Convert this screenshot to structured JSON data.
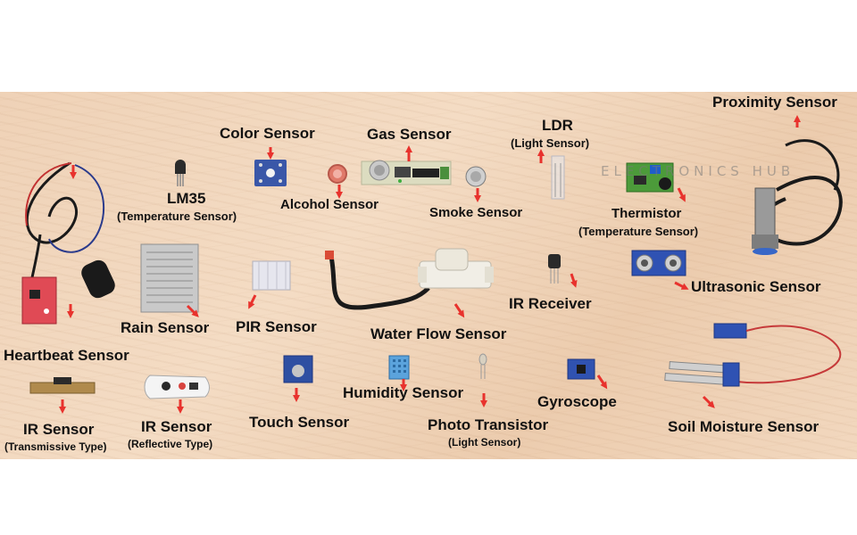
{
  "labels": {
    "proximity": "Proximity Sensor",
    "color": "Color Sensor",
    "gas": "Gas Sensor",
    "ldr": "LDR",
    "ldr_sub": "(Light Sensor)",
    "lm35": "LM35",
    "lm35_sub": "(Temperature Sensor)",
    "alcohol": "Alcohol Sensor",
    "smoke": "Smoke Sensor",
    "thermistor": "Thermistor",
    "thermistor_sub": "(Temperature Sensor)",
    "rain": "Rain Sensor",
    "pir": "PIR Sensor",
    "water_flow": "Water Flow Sensor",
    "ir_receiver": "IR Receiver",
    "ultrasonic": "Ultrasonic Sensor",
    "heartbeat": "Heartbeat Sensor",
    "humidity": "Humidity Sensor",
    "gyroscope": "Gyroscope",
    "ir_transmissive": "IR Sensor",
    "ir_transmissive_sub": "(Transmissive Type)",
    "ir_reflective": "IR Sensor",
    "ir_reflective_sub": "(Reflective Type)",
    "touch": "Touch Sensor",
    "photo_transistor": "Photo Transistor",
    "photo_transistor_sub": "(Light Sensor)",
    "soil_moisture": "Soil Moisture Sensor"
  },
  "watermark": "ELECTRONICS HUB",
  "colors": {
    "arrow": "#e8322d",
    "board": "#f0d4ba",
    "pcb_blue": "#2a4fa8",
    "pcb_red": "#d8443f",
    "cable": "#1a1a1a"
  }
}
